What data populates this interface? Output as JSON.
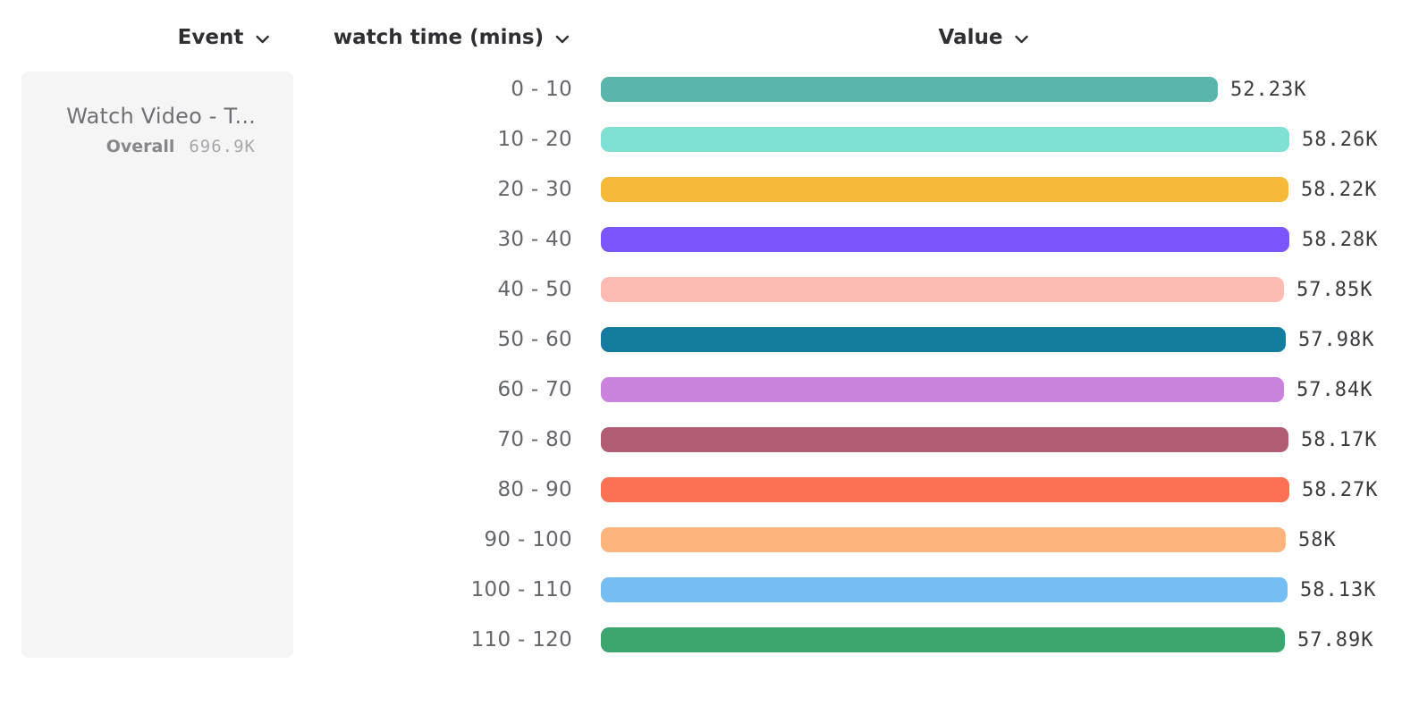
{
  "columns": [
    {
      "label": "Event"
    },
    {
      "label": "watch time (mins)"
    },
    {
      "label": "Value"
    }
  ],
  "event_card": {
    "title": "Watch Video - T...",
    "overall_label": "Overall",
    "overall_value": "696.9K"
  },
  "chart_data": {
    "type": "bar",
    "orientation": "horizontal",
    "series_name": "Watch Video - T...",
    "categories": [
      "0 - 10",
      "10 - 20",
      "20 - 30",
      "30 - 40",
      "40 - 50",
      "50 - 60",
      "60 - 70",
      "70 - 80",
      "80 - 90",
      "90 - 100",
      "100 - 110",
      "110 - 120"
    ],
    "values": [
      52230,
      58260,
      58220,
      58280,
      57850,
      57980,
      57840,
      58170,
      58270,
      58000,
      58130,
      57890
    ],
    "value_labels": [
      "52.23K",
      "58.26K",
      "58.22K",
      "58.28K",
      "57.85K",
      "57.98K",
      "57.84K",
      "58.17K",
      "58.27K",
      "58K",
      "58.13K",
      "57.89K"
    ],
    "colors": [
      "#5ab5ac",
      "#7fe0d4",
      "#f6ba3b",
      "#7a55f8",
      "#fbbbb3",
      "#147c9f",
      "#c983dd",
      "#b05c72",
      "#fc7053",
      "#fdb37c",
      "#76bdf3",
      "#3da56f"
    ],
    "xlim": [
      0,
      58280
    ],
    "grid": false,
    "legend": false,
    "title": ""
  }
}
